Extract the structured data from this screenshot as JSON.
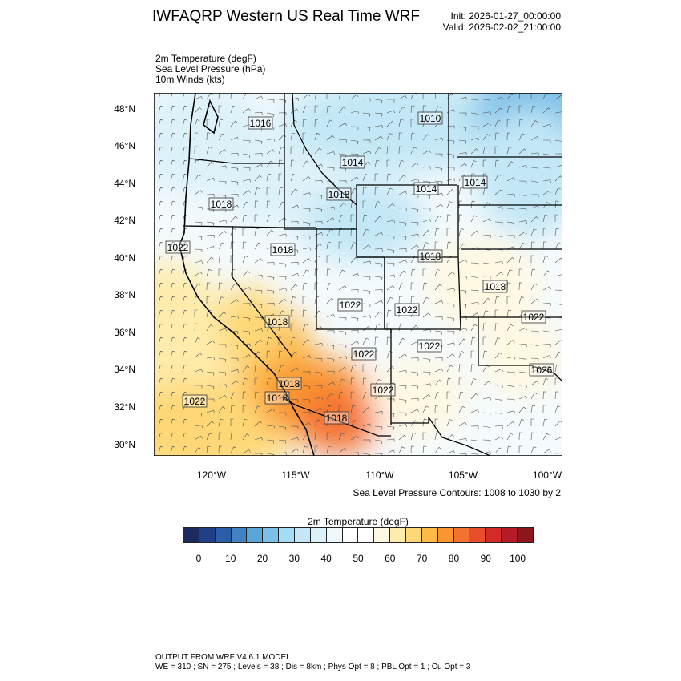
{
  "header": {
    "title": "IWFAQRP Western US Real Time WRF",
    "init": "Init: 2026-01-27_00:00:00",
    "valid": "Valid: 2026-02-02_21:00:00"
  },
  "fields": [
    "2m Temperature   (degF)",
    "Sea Level Pressure   (hPa)",
    "10m Winds   (kts)"
  ],
  "map": {
    "lat_labels": [
      "48°N",
      "46°N",
      "44°N",
      "42°N",
      "40°N",
      "38°N",
      "36°N",
      "34°N",
      "32°N",
      "30°N"
    ],
    "lon_labels": [
      "120°W",
      "115°W",
      "110°W",
      "105°W",
      "100°W"
    ],
    "contour_labels": [
      "1016",
      "1010",
      "1014",
      "1014",
      "1014",
      "1018",
      "1018",
      "1022",
      "1018",
      "1018",
      "1018",
      "1022",
      "1022",
      "1022",
      "1018",
      "1022",
      "1022",
      "1026",
      "1018",
      "1022",
      "1018",
      "1022",
      "1018"
    ],
    "contour_note": "Sea Level Pressure Contours: 1008 to 1030 by 2"
  },
  "colorbar": {
    "title": "2m Temperature  (degF)",
    "labels": [
      "0",
      "10",
      "20",
      "30",
      "40",
      "50",
      "60",
      "70",
      "80",
      "90",
      "100"
    ],
    "colors": [
      "#1b2a5f",
      "#203f87",
      "#2b5ea9",
      "#4082c2",
      "#5ba6d9",
      "#7cc0e7",
      "#a4dcf6",
      "#c3e7f6",
      "#ddf1f9",
      "#eff8fc",
      "#ffffff",
      "#ffffff",
      "#fff8e2",
      "#feecac",
      "#fed877",
      "#fdba46",
      "#f99631",
      "#f47231",
      "#e84d2c",
      "#d42a2a",
      "#b51c25",
      "#8c161b"
    ]
  },
  "footer": {
    "line1": "OUTPUT FROM WRF V4.6.1 MODEL",
    "line2": "WE = 310 ; SN = 275 ; Levels = 38 ; Dis = 8km ; Phys Opt = 8 ; PBL Opt = 1 ; Cu Opt = 3"
  }
}
